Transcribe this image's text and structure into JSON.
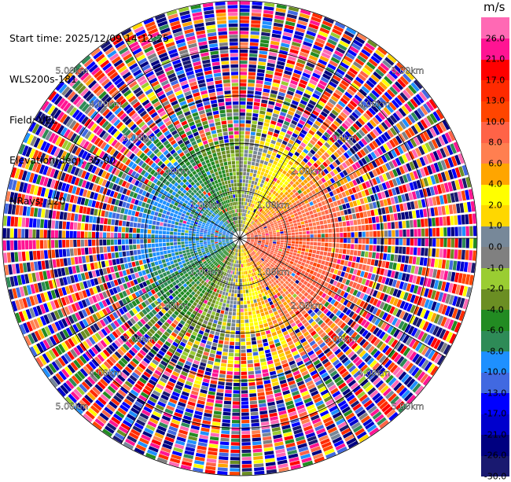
{
  "info": {
    "start_time": "Start time: 2025/12/09 14:12:25",
    "instrument": "WLS200s-181",
    "field": "Field: VEL",
    "elevation": "Elevation(deg): 35.00",
    "nrays": "NRays: 120"
  },
  "chart_data": {
    "type": "heatmap",
    "projection": "polar-ppi",
    "field": "VEL",
    "units": "m/s",
    "elevation_deg": 35.0,
    "n_rays": 120,
    "max_range_km": 5.0,
    "range_ring_labels": [
      "1.00km",
      "2.00km",
      "3.00km",
      "4.00km",
      "5.00km"
    ],
    "colorbar": {
      "title": "m/s",
      "bounds": [
        -30.0,
        -26.0,
        -21.0,
        -17.0,
        -13.0,
        -10.0,
        -8.0,
        -6.0,
        -4.0,
        -2.0,
        -1.0,
        0.0,
        1.0,
        2.0,
        4.0,
        6.0,
        8.0,
        10.0,
        13.0,
        17.0,
        21.0,
        26.0,
        30.0
      ],
      "tick_labels": [
        "-30.0",
        "-26.0",
        "-21.0",
        "-17.0",
        "-13.0",
        "-10.0",
        "-8.0",
        "-6.0",
        "-4.0",
        "-2.0",
        "-1.0",
        "0.0",
        "1.0",
        "2.0",
        "4.0",
        "6.0",
        "8.0",
        "10.0",
        "13.0",
        "17.0",
        "21.0",
        "26.0"
      ],
      "colors": [
        "#191970",
        "#000080",
        "#0000cd",
        "#0000ff",
        "#4169e1",
        "#1e90ff",
        "#2e8b57",
        "#228b22",
        "#6b8e23",
        "#9acd32",
        "#808080",
        "#778899",
        "#ffd700",
        "#ffff00",
        "#ffa500",
        "#ff7f50",
        "#ff6347",
        "#ff4500",
        "#ff2a00",
        "#ff0000",
        "#ff1493",
        "#ff69b4"
      ]
    }
  }
}
